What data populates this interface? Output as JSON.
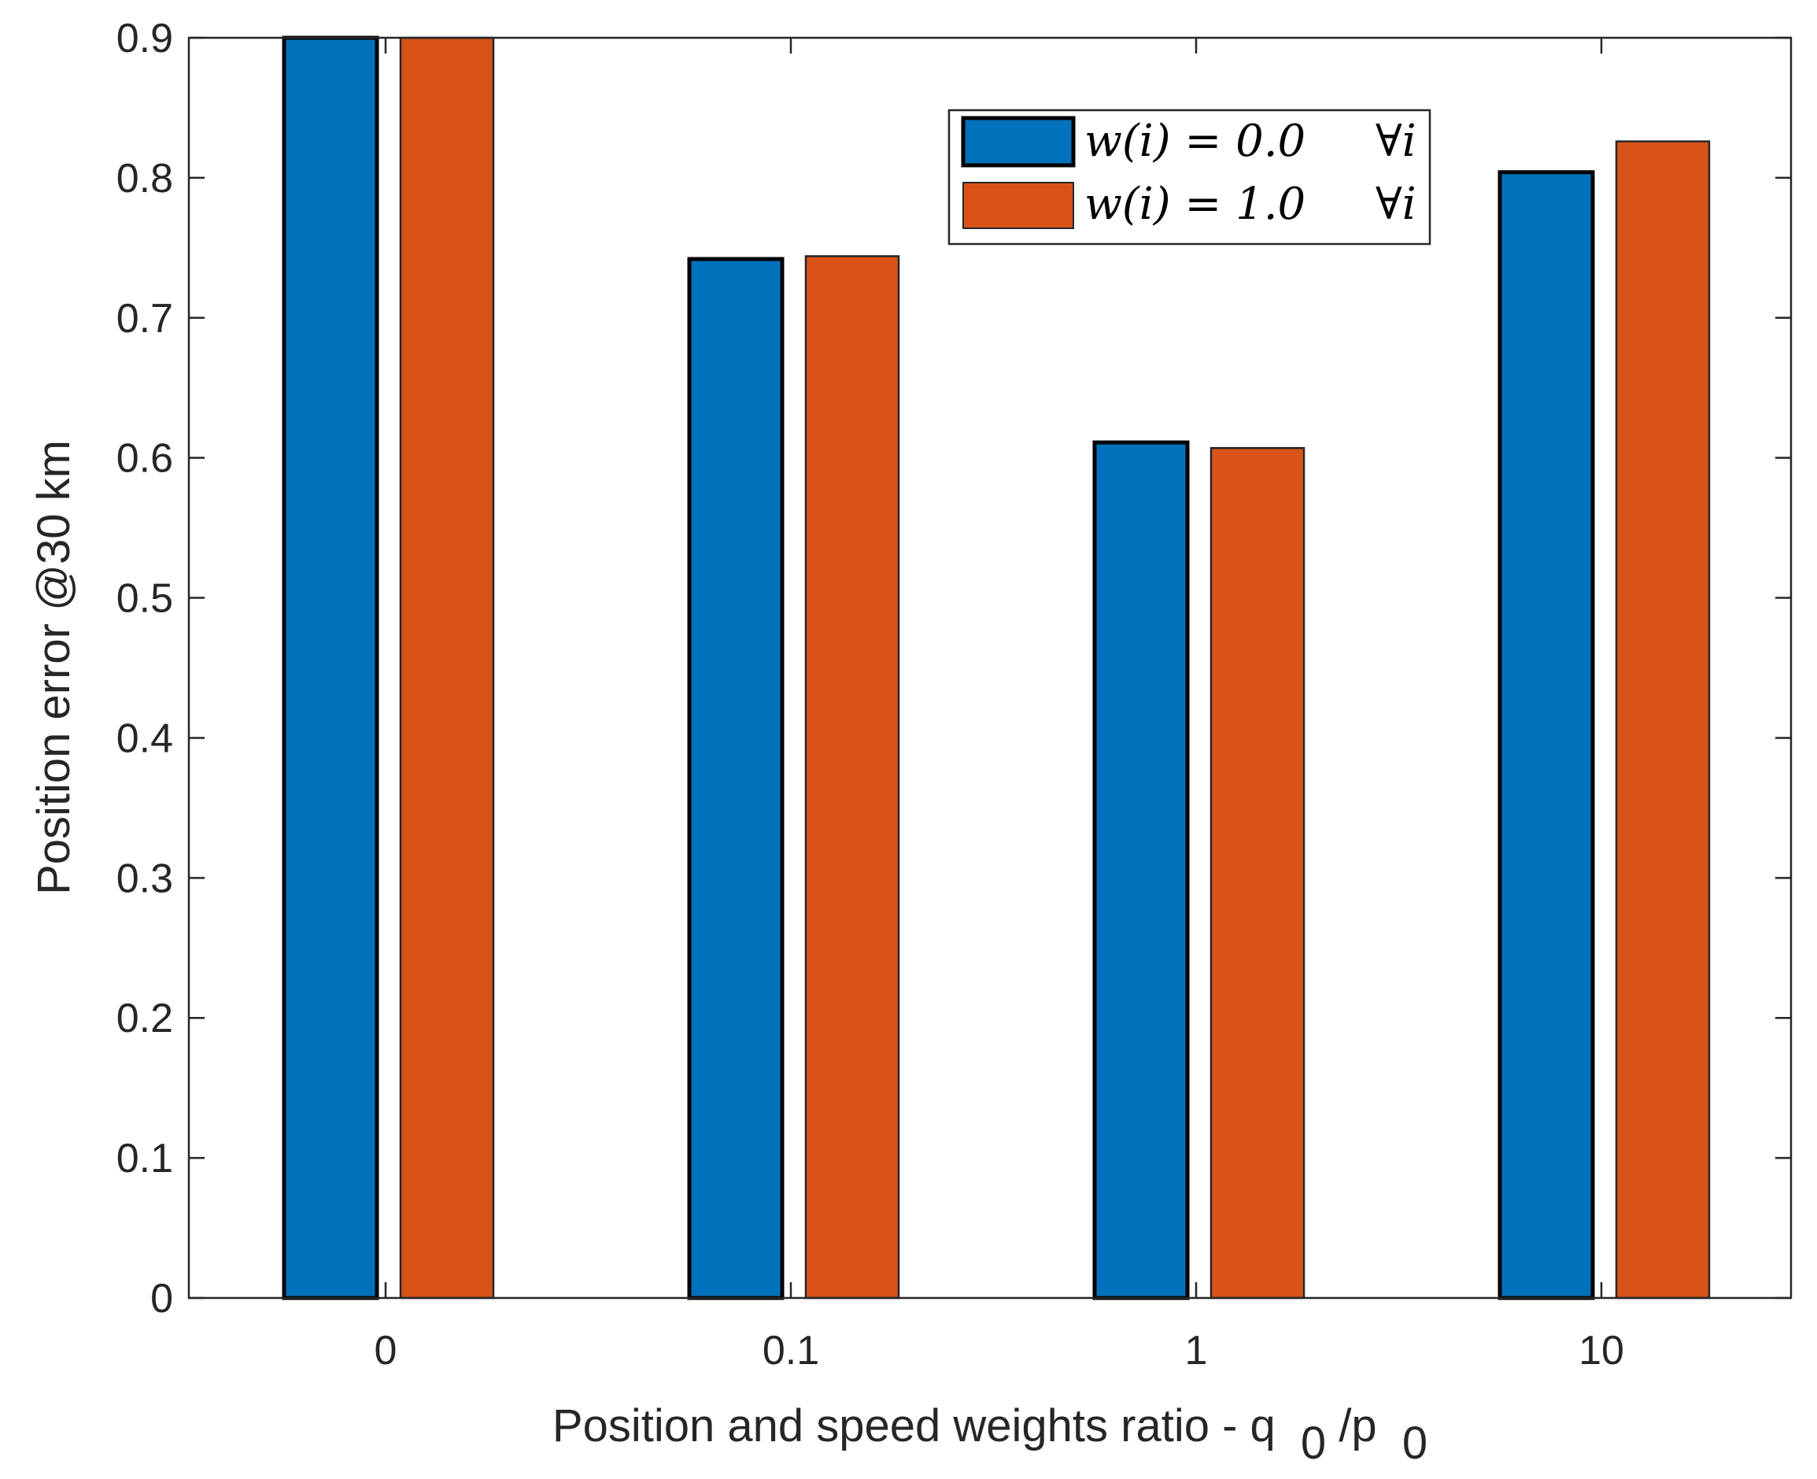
{
  "chart_data": {
    "type": "bar",
    "title": "",
    "xlabel": "Position and speed weights ratio - q",
    "xlabel_parts": {
      "q_sub": "0",
      "slash_p": "/p",
      "p_sub": "0"
    },
    "ylabel": "Position error @30 km",
    "categories": [
      "0",
      "0.1",
      "1",
      "10"
    ],
    "ylim": [
      0,
      0.9
    ],
    "yticks": [
      "0",
      "0.1",
      "0.2",
      "0.3",
      "0.4",
      "0.5",
      "0.6",
      "0.7",
      "0.8",
      "0.9"
    ],
    "ytick_values": [
      0,
      0.1,
      0.2,
      0.3,
      0.4,
      0.5,
      0.6,
      0.7,
      0.8,
      0.9
    ],
    "grid": false,
    "legend_position": "top-right",
    "series": [
      {
        "name": "w(i) = 0.0   ∀i",
        "legend_lhs": "w(i) = 0.0",
        "legend_rhs": "∀i",
        "color": "#0072BD",
        "values": [
          0.9,
          0.742,
          0.611,
          0.804
        ]
      },
      {
        "name": "w(i) = 1.0   ∀i",
        "legend_lhs": "w(i) = 1.0",
        "legend_rhs": "∀i",
        "color": "#D95319",
        "values": [
          0.9,
          0.744,
          0.607,
          0.826
        ]
      }
    ]
  }
}
